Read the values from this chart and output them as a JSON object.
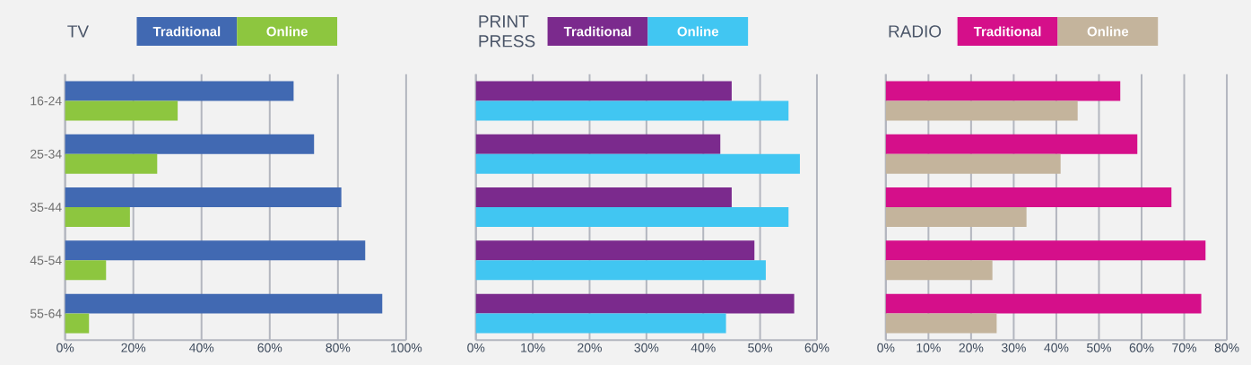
{
  "chart_data": [
    {
      "type": "bar",
      "orientation": "horizontal",
      "title": "TV",
      "categories": [
        "16-24",
        "25-34",
        "35-44",
        "45-54",
        "55-64"
      ],
      "series": [
        {
          "name": "Traditional",
          "color": "#4169b2",
          "values": [
            67,
            73,
            81,
            88,
            93
          ]
        },
        {
          "name": "Online",
          "color": "#8dc63f",
          "values": [
            33,
            27,
            19,
            12,
            7
          ]
        }
      ],
      "xlim": [
        0,
        100
      ],
      "xticks": [
        {
          "value": 0,
          "label": "0%"
        },
        {
          "value": 20,
          "label": "20%"
        },
        {
          "value": 40,
          "label": "40%"
        },
        {
          "value": 60,
          "label": "60%"
        },
        {
          "value": 80,
          "label": "80%"
        },
        {
          "value": 100,
          "label": "100%"
        }
      ],
      "grid": "x",
      "legend": "top"
    },
    {
      "type": "bar",
      "orientation": "horizontal",
      "title": "PRINT PRESS",
      "categories": [
        null,
        null,
        null,
        null,
        null
      ],
      "series": [
        {
          "name": "Traditional",
          "color": "#7b2a8d",
          "values": [
            45,
            43,
            45,
            49,
            56
          ]
        },
        {
          "name": "Online",
          "color": "#41c6f2",
          "values": [
            55,
            57,
            55,
            51,
            44
          ]
        }
      ],
      "xlim": [
        0,
        60
      ],
      "xticks": [
        {
          "value": 0,
          "label": "0%"
        },
        {
          "value": 10,
          "label": "10%"
        },
        {
          "value": 20,
          "label": "20%"
        },
        {
          "value": 30,
          "label": "30%"
        },
        {
          "value": 40,
          "label": "40%"
        },
        {
          "value": 50,
          "label": "50%"
        },
        {
          "value": 60,
          "label": "60%"
        }
      ],
      "grid": "x",
      "legend": "top"
    },
    {
      "type": "bar",
      "orientation": "horizontal",
      "title": "RADIO",
      "categories": [
        null,
        null,
        null,
        null,
        null
      ],
      "series": [
        {
          "name": "Traditional",
          "color": "#d50f8a",
          "values": [
            55,
            59,
            67,
            75,
            74
          ]
        },
        {
          "name": "Online",
          "color": "#c4b49c",
          "values": [
            45,
            41,
            33,
            25,
            26
          ]
        }
      ],
      "xlim": [
        0,
        80
      ],
      "xticks": [
        {
          "value": 0,
          "label": "0%"
        },
        {
          "value": 10,
          "label": "10%"
        },
        {
          "value": 20,
          "label": "20%"
        },
        {
          "value": 30,
          "label": "30%"
        },
        {
          "value": 40,
          "label": "40%"
        },
        {
          "value": 50,
          "label": "50%"
        },
        {
          "value": 60,
          "label": "60%"
        },
        {
          "value": 70,
          "label": "70%"
        },
        {
          "value": 80,
          "label": "80%"
        }
      ],
      "grid": "x",
      "legend": "top"
    }
  ]
}
